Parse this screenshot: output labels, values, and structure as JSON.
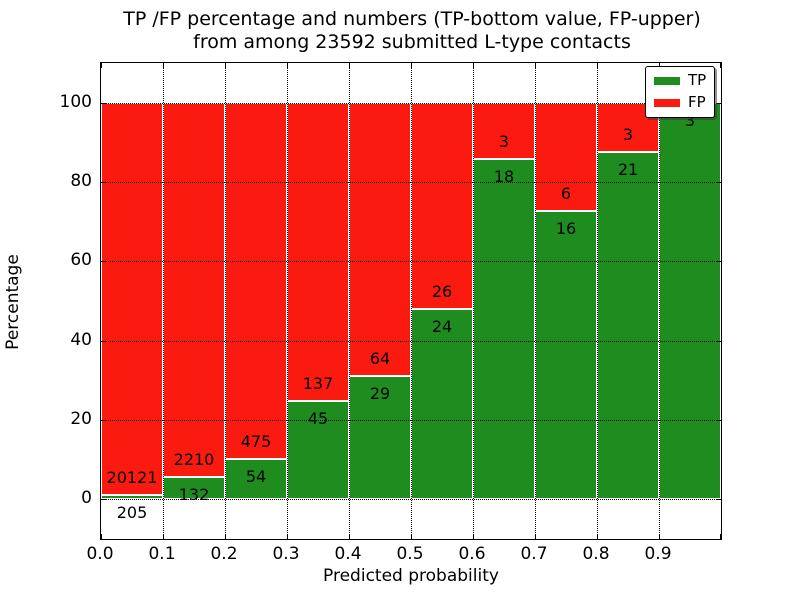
{
  "title": {
    "line1": "TP /FP percentage and numbers (TP-bottom value, FP-upper)",
    "line2": "from among 23592 submitted L-type contacts"
  },
  "axes": {
    "xlabel": "Predicted probability",
    "ylabel": "Percentage",
    "x_tick_labels": [
      "0.0",
      "0.1",
      "0.2",
      "0.3",
      "0.4",
      "0.5",
      "0.6",
      "0.7",
      "0.8",
      "0.9"
    ],
    "y_tick_labels": [
      "0",
      "20",
      "40",
      "60",
      "80",
      "100"
    ],
    "y_tick_values": [
      0,
      20,
      40,
      60,
      80,
      100
    ],
    "ylim": [
      -10,
      110
    ],
    "xlim": [
      0.0,
      1.0
    ],
    "grid": "dotted"
  },
  "legend": {
    "position": "upper-right",
    "items": [
      {
        "label": "TP",
        "color": "#1e8c1e"
      },
      {
        "label": "FP",
        "color": "#fb1a10"
      }
    ]
  },
  "chart_data": {
    "type": "bar",
    "stacked": true,
    "normalized_to": 100,
    "total_contacts": 23592,
    "bin_width": 0.1,
    "categories": [
      "0.0-0.1",
      "0.1-0.2",
      "0.2-0.3",
      "0.3-0.4",
      "0.4-0.5",
      "0.5-0.6",
      "0.6-0.7",
      "0.7-0.8",
      "0.8-0.9",
      "0.9-1.0"
    ],
    "series": [
      {
        "name": "TP",
        "color": "#1e8c1e",
        "counts": [
          205,
          132,
          54,
          45,
          29,
          24,
          18,
          16,
          21,
          3
        ]
      },
      {
        "name": "FP",
        "color": "#fb1a10",
        "counts": [
          20121,
          2210,
          475,
          137,
          64,
          26,
          3,
          6,
          3,
          0
        ]
      }
    ],
    "tp_percent": [
      1.01,
      5.64,
      10.21,
      24.73,
      31.18,
      48.0,
      85.71,
      72.73,
      87.5,
      100.0
    ],
    "bar_labels": {
      "tp": [
        "205",
        "132",
        "54",
        "45",
        "29",
        "24",
        "18",
        "16",
        "21",
        "3"
      ],
      "fp": [
        "20121",
        "2210",
        "475",
        "137",
        "64",
        "26",
        "3",
        "6",
        "3",
        ""
      ]
    }
  }
}
